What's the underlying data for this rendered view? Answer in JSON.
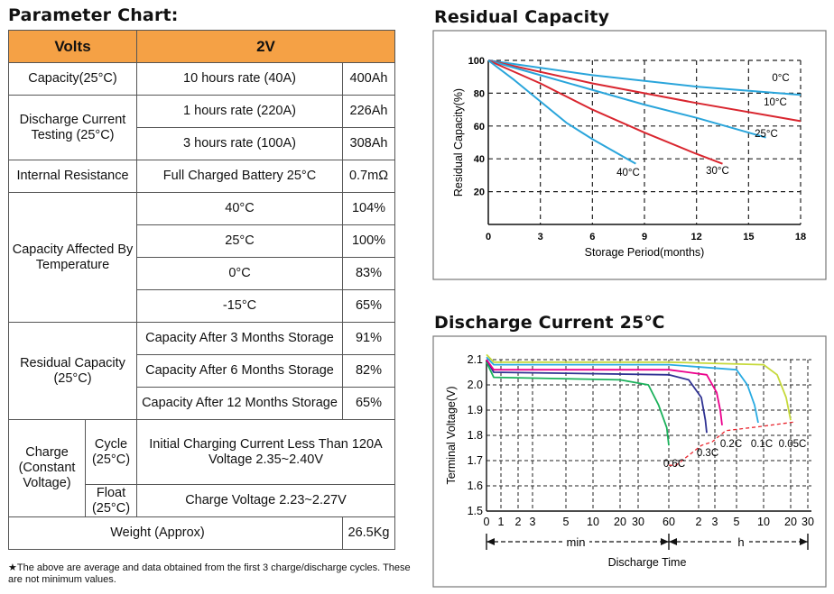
{
  "param": {
    "title": "Parameter Chart:",
    "head": {
      "label": "Volts",
      "value": "2V"
    },
    "capacity": {
      "label": "Capacity(25°C)",
      "cond": "10 hours rate (40A)",
      "value": "400Ah"
    },
    "discharge": {
      "label": "Discharge Current Testing (25°C)",
      "rows": [
        {
          "cond": "1 hours rate (220A)",
          "value": "226Ah"
        },
        {
          "cond": "3 hours rate (100A)",
          "value": "308Ah"
        }
      ]
    },
    "internal": {
      "label": "Internal Resistance",
      "cond": "Full Charged Battery 25°C",
      "value": "0.7mΩ"
    },
    "temp": {
      "label": "Capacity Affected By Temperature",
      "rows": [
        {
          "cond": "40°C",
          "value": "104%"
        },
        {
          "cond": "25°C",
          "value": "100%"
        },
        {
          "cond": "0°C",
          "value": "83%"
        },
        {
          "cond": "-15°C",
          "value": "65%"
        }
      ]
    },
    "residual": {
      "label": "Residual Capacity (25°C)",
      "rows": [
        {
          "cond": "Capacity After 3 Months Storage",
          "value": "91%"
        },
        {
          "cond": "Capacity After 6 Months Storage",
          "value": "82%"
        },
        {
          "cond": "Capacity After 12 Months Storage",
          "value": "65%"
        }
      ]
    },
    "charge": {
      "label": "Charge (Constant Voltage)",
      "cycle_label": "Cycle (25°C)",
      "cycle_value": "Initial Charging Current Less Than 120A Voltage 2.35~2.40V",
      "float_label": "Float (25°C)",
      "float_value": "Charge Voltage 2.23~2.27V"
    },
    "weight": {
      "label": "Weight (Approx)",
      "value": "26.5Kg"
    },
    "note": "★The above are average and data obtained from the first 3 charge/discharge cycles. These are not minimum values."
  },
  "chart_data": [
    {
      "type": "line",
      "title": "Residual Capacity",
      "xlabel": "Storage Period(months)",
      "ylabel": "Residual Capacity(%)",
      "xlim": [
        0,
        18
      ],
      "ylim": [
        0,
        100
      ],
      "xticks": [
        0,
        3,
        6,
        9,
        12,
        15,
        18
      ],
      "yticks": [
        20,
        40,
        60,
        80,
        100
      ],
      "grid": true,
      "series": [
        {
          "name": "0°C",
          "color": "#2aa5db",
          "points": [
            [
              0,
              100
            ],
            [
              6,
              91
            ],
            [
              12,
              84
            ],
            [
              18,
              79
            ]
          ]
        },
        {
          "name": "10°C",
          "color": "#d9262f",
          "points": [
            [
              0,
              100
            ],
            [
              6,
              86
            ],
            [
              12,
              74
            ],
            [
              18,
              63
            ]
          ]
        },
        {
          "name": "25°C",
          "color": "#2aa5db",
          "points": [
            [
              0,
              100
            ],
            [
              3,
              91
            ],
            [
              6,
              82
            ],
            [
              9,
              73
            ],
            [
              12,
              65
            ],
            [
              16,
              53
            ]
          ]
        },
        {
          "name": "30°C",
          "color": "#d9262f",
          "points": [
            [
              0,
              100
            ],
            [
              3,
              86
            ],
            [
              6,
              70
            ],
            [
              9,
              56
            ],
            [
              12,
              43
            ],
            [
              13.5,
              37
            ]
          ]
        },
        {
          "name": "40°C",
          "color": "#2aa5db",
          "points": [
            [
              0,
              100
            ],
            [
              1.5,
              88
            ],
            [
              3,
              75
            ],
            [
              4.5,
              62
            ],
            [
              6,
              52
            ],
            [
              8,
              40
            ],
            [
              8.5,
              37
            ]
          ]
        }
      ]
    },
    {
      "type": "line",
      "title": "Discharge Current 25℃",
      "xlabel": "Discharge Time",
      "ylabel": "Terminal Voltage(V)",
      "ylim": [
        1.5,
        2.1
      ],
      "yticks": [
        "1.5",
        "1.6",
        "1.7",
        "1.8",
        "1.9",
        "2.0",
        "2.1"
      ],
      "xticks": [
        "0",
        "1",
        "2",
        "3",
        "5",
        "10",
        "20",
        "30",
        "60",
        "2",
        "3",
        "5",
        "10",
        "20",
        "30"
      ],
      "x_units": [
        "min",
        "h"
      ],
      "grid": true,
      "series": [
        {
          "name": "0.6C",
          "color": "#1ab15a",
          "points": [
            [
              0,
              2.09
            ],
            [
              0.5,
              2.03
            ],
            [
              20,
              2.02
            ],
            [
              40,
              2.0
            ],
            [
              50,
              1.92
            ],
            [
              58,
              1.83
            ],
            [
              60,
              1.76
            ]
          ]
        },
        {
          "name": "0.3C",
          "color": "#2e3192",
          "points": [
            [
              0,
              2.1
            ],
            [
              0.5,
              2.05
            ],
            [
              60,
              2.04
            ],
            [
              100,
              2.02
            ],
            [
              130,
              1.95
            ],
            [
              145,
              1.86
            ],
            [
              150,
              1.81
            ]
          ]
        },
        {
          "name": "0.2C",
          "color": "#ec008c",
          "points": [
            [
              0,
              2.1
            ],
            [
              0.5,
              2.06
            ],
            [
              60,
              2.06
            ],
            [
              150,
              2.04
            ],
            [
              190,
              1.97
            ],
            [
              210,
              1.9
            ],
            [
              220,
              1.84
            ]
          ]
        },
        {
          "name": "0.1C",
          "color": "#29abe2",
          "points": [
            [
              0,
              2.11
            ],
            [
              0.5,
              2.08
            ],
            [
              60,
              2.08
            ],
            [
              300,
              2.06
            ],
            [
              420,
              2.0
            ],
            [
              500,
              1.92
            ],
            [
              540,
              1.85
            ]
          ]
        },
        {
          "name": "0.05C",
          "color": "#c6d93b",
          "points": [
            [
              0,
              2.12
            ],
            [
              0.5,
              2.09
            ],
            [
              60,
              2.09
            ],
            [
              600,
              2.08
            ],
            [
              900,
              2.04
            ],
            [
              1100,
              1.95
            ],
            [
              1200,
              1.86
            ]
          ]
        }
      ],
      "cutoff": {
        "series": "0.6C, 0.3C, 0.2C, 0.1C, 0.05C",
        "color": "#e9262f"
      }
    }
  ]
}
